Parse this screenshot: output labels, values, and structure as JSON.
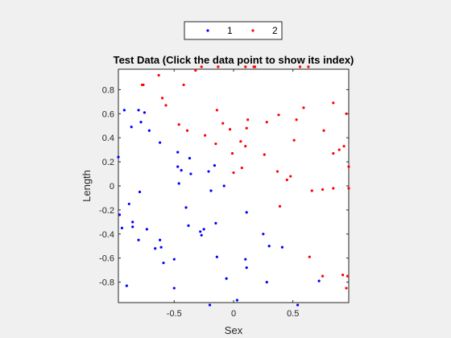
{
  "chart_data": {
    "type": "scatter",
    "title": "Test Data (Click the data point to show its index)",
    "xlabel": "Sex",
    "ylabel": "Length",
    "xlim": [
      -0.97,
      0.97
    ],
    "ylim": [
      -0.97,
      0.97
    ],
    "xticks": [
      -0.5,
      0,
      0.5
    ],
    "xtick_labels": [
      "-0.5",
      "0",
      "0.5"
    ],
    "yticks": [
      -0.8,
      -0.6,
      -0.4,
      -0.2,
      0,
      0.2,
      0.4,
      0.6,
      0.8
    ],
    "ytick_labels": [
      "-0.8",
      "-0.6",
      "-0.4",
      "-0.2",
      "0",
      "0.2",
      "0.4",
      "0.6",
      "0.8"
    ],
    "grid": false,
    "legend_position": "top-center",
    "series": [
      {
        "name": "1",
        "color": "#0000ff",
        "points": [
          [
            -0.97,
            0.24
          ],
          [
            -0.92,
            0.63
          ],
          [
            -0.86,
            0.49
          ],
          [
            -0.8,
            0.63
          ],
          [
            -0.78,
            0.53
          ],
          [
            -0.75,
            0.61
          ],
          [
            -0.71,
            0.46
          ],
          [
            -0.62,
            0.36
          ],
          [
            -0.47,
            0.28
          ],
          [
            -0.47,
            0.16
          ],
          [
            -0.44,
            0.13
          ],
          [
            -0.37,
            0.23
          ],
          [
            -0.36,
            0.1
          ],
          [
            -0.21,
            0.12
          ],
          [
            -0.16,
            0.17
          ],
          [
            -0.46,
            0.02
          ],
          [
            -0.19,
            -0.04
          ],
          [
            -0.08,
            0.0
          ],
          [
            -0.4,
            -0.18
          ],
          [
            -0.96,
            -0.24
          ],
          [
            -0.94,
            -0.35
          ],
          [
            -0.88,
            -0.15
          ],
          [
            -0.79,
            -0.05
          ],
          [
            -0.85,
            -0.3
          ],
          [
            -0.85,
            -0.34
          ],
          [
            -0.73,
            -0.36
          ],
          [
            -0.8,
            -0.45
          ],
          [
            -0.66,
            -0.52
          ],
          [
            -0.62,
            -0.45
          ],
          [
            -0.61,
            -0.51
          ],
          [
            -0.59,
            -0.64
          ],
          [
            -0.5,
            -0.61
          ],
          [
            -0.38,
            -0.33
          ],
          [
            -0.28,
            -0.38
          ],
          [
            -0.27,
            -0.41
          ],
          [
            -0.25,
            -0.36
          ],
          [
            -0.15,
            -0.31
          ],
          [
            -0.14,
            -0.59
          ],
          [
            -0.06,
            -0.77
          ],
          [
            -0.5,
            -0.85
          ],
          [
            -0.9,
            -0.83
          ],
          [
            -0.2,
            -0.99
          ],
          [
            0.03,
            -0.95
          ],
          [
            0.1,
            -0.61
          ],
          [
            0.11,
            -0.68
          ],
          [
            0.11,
            -0.22
          ],
          [
            0.25,
            -0.4
          ],
          [
            0.3,
            -0.5
          ],
          [
            0.28,
            -0.8
          ],
          [
            0.41,
            -0.51
          ],
          [
            0.54,
            -0.99
          ],
          [
            0.72,
            -0.79
          ]
        ]
      },
      {
        "name": "2",
        "color": "#ff0000",
        "points": [
          [
            -0.77,
            0.84
          ],
          [
            -0.76,
            0.84
          ],
          [
            -0.63,
            0.92
          ],
          [
            -0.6,
            0.73
          ],
          [
            -0.57,
            0.67
          ],
          [
            -0.42,
            0.84
          ],
          [
            -0.32,
            0.96
          ],
          [
            -0.27,
            0.99
          ],
          [
            -0.13,
            0.99
          ],
          [
            0.1,
            0.99
          ],
          [
            0.17,
            0.99
          ],
          [
            0.18,
            0.99
          ],
          [
            0.56,
            0.99
          ],
          [
            0.63,
            0.99
          ],
          [
            0.84,
            0.69
          ],
          [
            0.95,
            0.6
          ],
          [
            0.59,
            0.65
          ],
          [
            0.53,
            0.55
          ],
          [
            0.51,
            0.38
          ],
          [
            0.38,
            0.59
          ],
          [
            0.28,
            0.53
          ],
          [
            0.12,
            0.55
          ],
          [
            0.11,
            0.48
          ],
          [
            -0.14,
            0.63
          ],
          [
            -0.09,
            0.52
          ],
          [
            -0.03,
            0.47
          ],
          [
            -0.24,
            0.42
          ],
          [
            -0.39,
            0.46
          ],
          [
            -0.46,
            0.51
          ],
          [
            -0.15,
            0.35
          ],
          [
            -0.01,
            0.27
          ],
          [
            0.06,
            0.37
          ],
          [
            0.1,
            0.33
          ],
          [
            0.07,
            0.15
          ],
          [
            0.0,
            0.11
          ],
          [
            0.26,
            0.26
          ],
          [
            0.37,
            0.12
          ],
          [
            0.45,
            0.05
          ],
          [
            0.48,
            0.08
          ],
          [
            0.39,
            -0.17
          ],
          [
            0.66,
            -0.04
          ],
          [
            0.75,
            -0.03
          ],
          [
            0.84,
            -0.02
          ],
          [
            0.97,
            -0.02
          ],
          [
            0.97,
            0.16
          ],
          [
            0.93,
            0.33
          ],
          [
            0.89,
            0.3
          ],
          [
            0.84,
            0.27
          ],
          [
            0.76,
            0.46
          ],
          [
            0.64,
            -0.59
          ],
          [
            0.75,
            -0.75
          ],
          [
            0.96,
            -0.75
          ],
          [
            0.92,
            -0.74
          ],
          [
            0.95,
            -0.85
          ]
        ]
      }
    ]
  }
}
